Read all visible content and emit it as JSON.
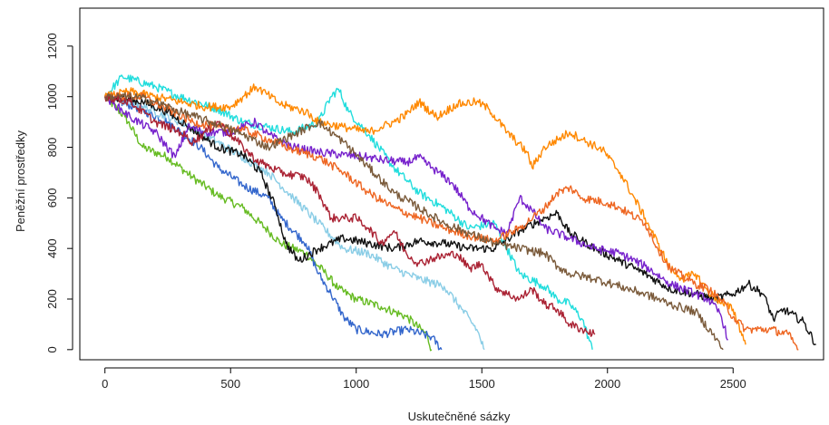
{
  "chart_data": {
    "type": "line",
    "title": "",
    "xlabel": "Uskutečněné sázky",
    "ylabel": "Peněžní prostředky",
    "xlim": [
      -100,
      2860
    ],
    "ylim": [
      -40,
      1350
    ],
    "xticks": [
      0,
      500,
      1000,
      1500,
      2000,
      2500
    ],
    "yticks": [
      0,
      200,
      400,
      600,
      800,
      1000,
      1200
    ],
    "xtick_labels": [
      "0",
      "500",
      "1000",
      "1500",
      "2000",
      "2500"
    ],
    "ytick_labels": [
      "0",
      "200",
      "400",
      "600",
      "800",
      "1000",
      "1200"
    ],
    "grid": false,
    "legend": "none",
    "series": [
      {
        "color": "#66bb22",
        "points": [
          [
            0,
            1000
          ],
          [
            80,
            920
          ],
          [
            150,
            800
          ],
          [
            250,
            760
          ],
          [
            350,
            680
          ],
          [
            450,
            610
          ],
          [
            550,
            560
          ],
          [
            650,
            470
          ],
          [
            700,
            420
          ],
          [
            800,
            380
          ],
          [
            880,
            300
          ],
          [
            930,
            240
          ],
          [
            1000,
            200
          ],
          [
            1100,
            170
          ],
          [
            1200,
            130
          ],
          [
            1280,
            60
          ],
          [
            1300,
            0
          ]
        ]
      },
      {
        "color": "#3366cc",
        "points": [
          [
            0,
            1000
          ],
          [
            120,
            960
          ],
          [
            250,
            900
          ],
          [
            380,
            800
          ],
          [
            450,
            720
          ],
          [
            550,
            650
          ],
          [
            650,
            600
          ],
          [
            700,
            520
          ],
          [
            800,
            420
          ],
          [
            850,
            300
          ],
          [
            900,
            220
          ],
          [
            950,
            130
          ],
          [
            1000,
            80
          ],
          [
            1100,
            60
          ],
          [
            1200,
            80
          ],
          [
            1300,
            50
          ],
          [
            1340,
            0
          ]
        ]
      },
      {
        "color": "#22dddd",
        "points": [
          [
            0,
            1000
          ],
          [
            70,
            1080
          ],
          [
            200,
            1040
          ],
          [
            300,
            1000
          ],
          [
            450,
            950
          ],
          [
            550,
            900
          ],
          [
            650,
            880
          ],
          [
            750,
            860
          ],
          [
            850,
            900
          ],
          [
            900,
            1000
          ],
          [
            930,
            1030
          ],
          [
            970,
            940
          ],
          [
            1050,
            850
          ],
          [
            1150,
            720
          ],
          [
            1250,
            620
          ],
          [
            1350,
            560
          ],
          [
            1450,
            480
          ],
          [
            1550,
            500
          ],
          [
            1600,
            400
          ],
          [
            1650,
            300
          ],
          [
            1750,
            250
          ],
          [
            1800,
            200
          ],
          [
            1850,
            180
          ],
          [
            1900,
            120
          ],
          [
            1940,
            0
          ]
        ]
      },
      {
        "color": "#8acde6",
        "points": [
          [
            0,
            1000
          ],
          [
            150,
            960
          ],
          [
            300,
            900
          ],
          [
            450,
            820
          ],
          [
            550,
            760
          ],
          [
            650,
            700
          ],
          [
            750,
            600
          ],
          [
            850,
            500
          ],
          [
            950,
            400
          ],
          [
            1050,
            380
          ],
          [
            1150,
            320
          ],
          [
            1250,
            280
          ],
          [
            1350,
            250
          ],
          [
            1420,
            160
          ],
          [
            1480,
            80
          ],
          [
            1510,
            0
          ]
        ]
      },
      {
        "color": "#111111",
        "points": [
          [
            0,
            1000
          ],
          [
            150,
            980
          ],
          [
            250,
            940
          ],
          [
            350,
            870
          ],
          [
            450,
            800
          ],
          [
            550,
            770
          ],
          [
            620,
            700
          ],
          [
            680,
            560
          ],
          [
            720,
            420
          ],
          [
            770,
            350
          ],
          [
            850,
            400
          ],
          [
            950,
            440
          ],
          [
            1050,
            420
          ],
          [
            1150,
            400
          ],
          [
            1250,
            430
          ],
          [
            1350,
            420
          ],
          [
            1450,
            400
          ],
          [
            1550,
            400
          ],
          [
            1650,
            470
          ],
          [
            1750,
            520
          ],
          [
            1800,
            540
          ],
          [
            1850,
            460
          ],
          [
            1950,
            400
          ],
          [
            2050,
            350
          ],
          [
            2150,
            300
          ],
          [
            2250,
            240
          ],
          [
            2350,
            220
          ],
          [
            2420,
            200
          ],
          [
            2500,
            220
          ],
          [
            2560,
            260
          ],
          [
            2620,
            220
          ],
          [
            2660,
            120
          ],
          [
            2700,
            160
          ],
          [
            2780,
            110
          ],
          [
            2830,
            20
          ]
        ]
      },
      {
        "color": "#7722cc",
        "points": [
          [
            0,
            1000
          ],
          [
            100,
            920
          ],
          [
            200,
            860
          ],
          [
            280,
            760
          ],
          [
            330,
            880
          ],
          [
            400,
            860
          ],
          [
            500,
            860
          ],
          [
            600,
            900
          ],
          [
            650,
            850
          ],
          [
            750,
            800
          ],
          [
            850,
            780
          ],
          [
            950,
            770
          ],
          [
            1050,
            760
          ],
          [
            1100,
            750
          ],
          [
            1200,
            740
          ],
          [
            1250,
            760
          ],
          [
            1300,
            720
          ],
          [
            1380,
            660
          ],
          [
            1450,
            560
          ],
          [
            1550,
            480
          ],
          [
            1600,
            460
          ],
          [
            1650,
            600
          ],
          [
            1700,
            550
          ],
          [
            1750,
            480
          ],
          [
            1850,
            440
          ],
          [
            1950,
            400
          ],
          [
            2050,
            380
          ],
          [
            2150,
            330
          ],
          [
            2250,
            260
          ],
          [
            2350,
            220
          ],
          [
            2400,
            200
          ],
          [
            2450,
            140
          ],
          [
            2480,
            40
          ]
        ]
      },
      {
        "color": "#ff8800",
        "points": [
          [
            0,
            1000
          ],
          [
            100,
            1020
          ],
          [
            200,
            1000
          ],
          [
            300,
            980
          ],
          [
            400,
            960
          ],
          [
            500,
            960
          ],
          [
            600,
            1040
          ],
          [
            700,
            970
          ],
          [
            800,
            940
          ],
          [
            850,
            900
          ],
          [
            950,
            880
          ],
          [
            1050,
            860
          ],
          [
            1100,
            880
          ],
          [
            1150,
            900
          ],
          [
            1200,
            930
          ],
          [
            1250,
            980
          ],
          [
            1320,
            920
          ],
          [
            1400,
            970
          ],
          [
            1480,
            980
          ],
          [
            1530,
            950
          ],
          [
            1600,
            860
          ],
          [
            1680,
            780
          ],
          [
            1700,
            720
          ],
          [
            1750,
            800
          ],
          [
            1850,
            860
          ],
          [
            1900,
            830
          ],
          [
            1980,
            790
          ],
          [
            2050,
            700
          ],
          [
            2150,
            520
          ],
          [
            2200,
            420
          ],
          [
            2250,
            320
          ],
          [
            2300,
            280
          ],
          [
            2350,
            300
          ],
          [
            2400,
            230
          ],
          [
            2460,
            180
          ],
          [
            2500,
            160
          ],
          [
            2550,
            20
          ]
        ]
      },
      {
        "color": "#ee6622",
        "points": [
          [
            0,
            1000
          ],
          [
            150,
            1000
          ],
          [
            250,
            950
          ],
          [
            350,
            900
          ],
          [
            450,
            880
          ],
          [
            550,
            870
          ],
          [
            650,
            830
          ],
          [
            750,
            790
          ],
          [
            850,
            760
          ],
          [
            950,
            700
          ],
          [
            1050,
            620
          ],
          [
            1150,
            560
          ],
          [
            1250,
            520
          ],
          [
            1350,
            480
          ],
          [
            1450,
            450
          ],
          [
            1550,
            430
          ],
          [
            1650,
            480
          ],
          [
            1750,
            560
          ],
          [
            1800,
            620
          ],
          [
            1850,
            640
          ],
          [
            1900,
            600
          ],
          [
            2000,
            580
          ],
          [
            2050,
            560
          ],
          [
            2150,
            500
          ],
          [
            2200,
            400
          ],
          [
            2250,
            320
          ],
          [
            2350,
            260
          ],
          [
            2400,
            240
          ],
          [
            2450,
            200
          ],
          [
            2500,
            130
          ],
          [
            2550,
            80
          ],
          [
            2650,
            80
          ],
          [
            2720,
            60
          ],
          [
            2760,
            0
          ]
        ]
      },
      {
        "color": "#aa2233",
        "points": [
          [
            0,
            1000
          ],
          [
            100,
            980
          ],
          [
            200,
            900
          ],
          [
            300,
            860
          ],
          [
            350,
            820
          ],
          [
            450,
            900
          ],
          [
            550,
            800
          ],
          [
            600,
            750
          ],
          [
            700,
            700
          ],
          [
            800,
            680
          ],
          [
            850,
            620
          ],
          [
            900,
            520
          ],
          [
            950,
            520
          ],
          [
            1000,
            520
          ],
          [
            1050,
            480
          ],
          [
            1100,
            420
          ],
          [
            1150,
            470
          ],
          [
            1200,
            380
          ],
          [
            1250,
            340
          ],
          [
            1300,
            360
          ],
          [
            1400,
            380
          ],
          [
            1450,
            320
          ],
          [
            1500,
            340
          ],
          [
            1550,
            250
          ],
          [
            1600,
            220
          ],
          [
            1650,
            200
          ],
          [
            1700,
            240
          ],
          [
            1750,
            180
          ],
          [
            1800,
            160
          ],
          [
            1850,
            100
          ],
          [
            1900,
            80
          ],
          [
            1950,
            60
          ]
        ]
      },
      {
        "color": "#7a5a3a",
        "points": [
          [
            0,
            1000
          ],
          [
            120,
            1000
          ],
          [
            200,
            980
          ],
          [
            300,
            940
          ],
          [
            450,
            890
          ],
          [
            550,
            850
          ],
          [
            650,
            800
          ],
          [
            750,
            850
          ],
          [
            850,
            900
          ],
          [
            950,
            820
          ],
          [
            1050,
            720
          ],
          [
            1150,
            620
          ],
          [
            1250,
            560
          ],
          [
            1350,
            500
          ],
          [
            1450,
            460
          ],
          [
            1550,
            420
          ],
          [
            1650,
            400
          ],
          [
            1750,
            380
          ],
          [
            1800,
            330
          ],
          [
            1850,
            300
          ],
          [
            1950,
            280
          ],
          [
            2050,
            250
          ],
          [
            2150,
            220
          ],
          [
            2250,
            180
          ],
          [
            2350,
            150
          ],
          [
            2420,
            60
          ],
          [
            2460,
            0
          ]
        ]
      }
    ]
  }
}
